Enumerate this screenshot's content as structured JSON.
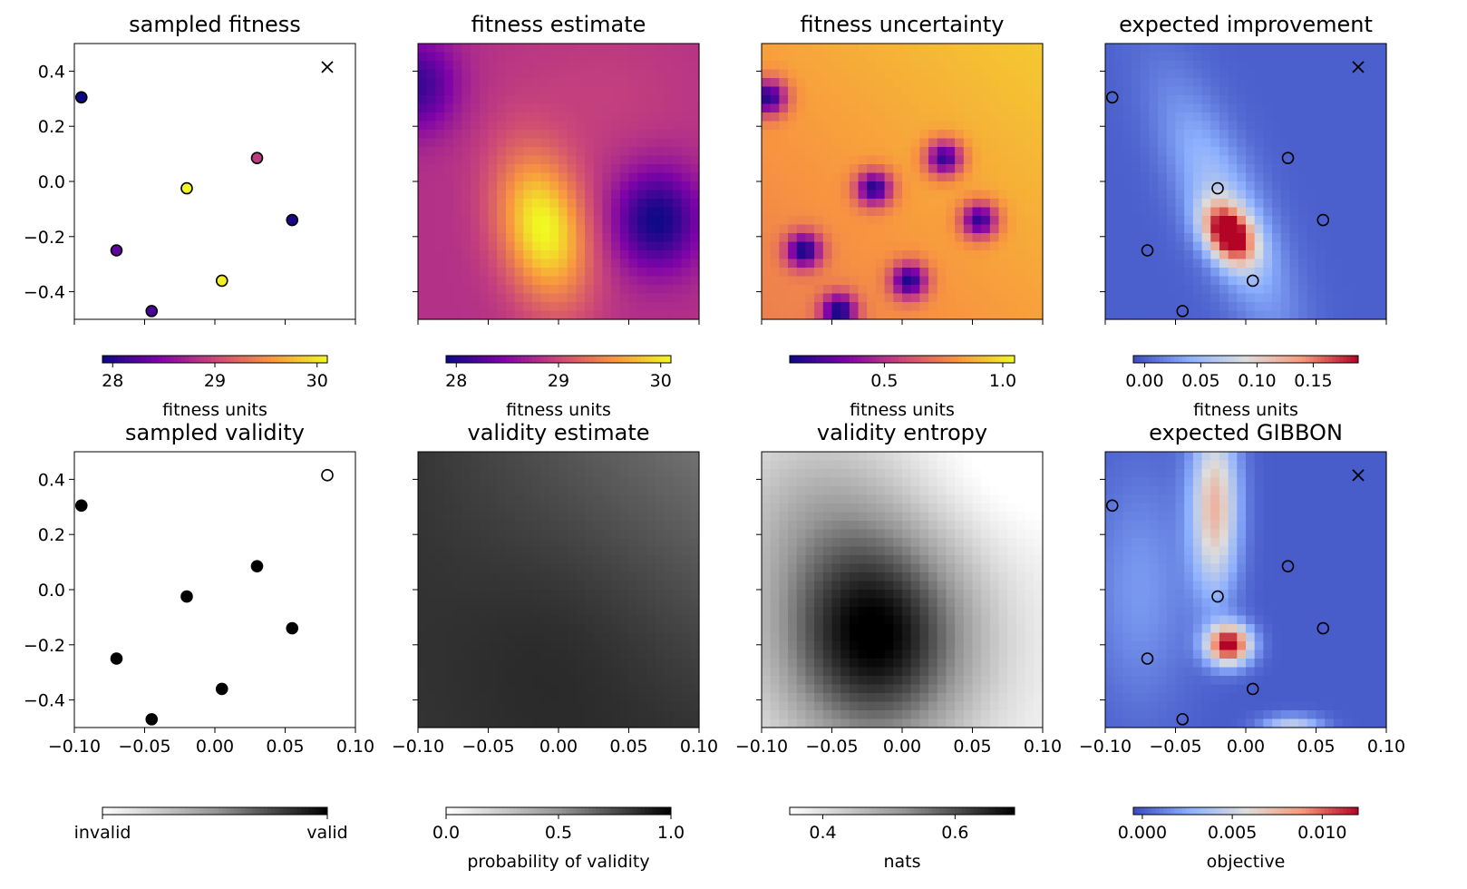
{
  "chart_data": [
    {
      "type": "scatter",
      "title": "sampled fitness",
      "xlim": [
        -0.1,
        0.1
      ],
      "ylim": [
        -0.5,
        0.5
      ],
      "xticks": [
        "−0.10",
        "−0.05",
        "0.00",
        "0.05",
        "0.10"
      ],
      "yticks": [
        "−0.4",
        "−0.2",
        "0.0",
        "0.2",
        "0.4"
      ],
      "show_xticklabels": false,
      "show_yticklabels": true,
      "colormap": "plasma",
      "points": [
        {
          "x": -0.095,
          "y": 0.305,
          "fitness": 27.9
        },
        {
          "x": -0.07,
          "y": -0.25,
          "fitness": 28.3
        },
        {
          "x": -0.045,
          "y": -0.47,
          "fitness": 28.2
        },
        {
          "x": -0.02,
          "y": -0.025,
          "fitness": 30.1
        },
        {
          "x": 0.005,
          "y": -0.36,
          "fitness": 30.05
        },
        {
          "x": 0.03,
          "y": 0.085,
          "fitness": 28.9
        },
        {
          "x": 0.055,
          "y": -0.14,
          "fitness": 27.95
        }
      ],
      "proposed": {
        "x": 0.08,
        "y": 0.415,
        "marker": "x"
      },
      "colorbar": {
        "colormap": "plasma",
        "range": [
          27.9,
          30.1
        ],
        "ticks": [
          "28",
          "29",
          "30"
        ],
        "tick_values": [
          28,
          29,
          30
        ],
        "label": "fitness units"
      }
    },
    {
      "type": "heatmap",
      "title": "fitness estimate",
      "colormap": "plasma",
      "xlim": [
        -0.1,
        0.1
      ],
      "ylim": [
        -0.5,
        0.5
      ],
      "show_xticklabels": false,
      "show_yticklabels": false,
      "colorbar": {
        "colormap": "plasma",
        "range": [
          27.9,
          30.1
        ],
        "ticks": [
          "28",
          "29",
          "30"
        ],
        "tick_values": [
          28,
          29,
          30
        ],
        "label": "fitness units"
      }
    },
    {
      "type": "heatmap",
      "title": "fitness uncertainty",
      "colormap": "plasma",
      "xlim": [
        -0.1,
        0.1
      ],
      "ylim": [
        -0.5,
        0.5
      ],
      "show_xticklabels": false,
      "show_yticklabels": false,
      "colorbar": {
        "colormap": "plasma",
        "range": [
          0.1,
          1.05
        ],
        "ticks": [
          "0.5",
          "1.0"
        ],
        "tick_values": [
          0.5,
          1.0
        ],
        "label": "fitness units"
      }
    },
    {
      "type": "heatmap",
      "title": "expected improvement",
      "colormap": "coolwarm",
      "xlim": [
        -0.1,
        0.1
      ],
      "ylim": [
        -0.5,
        0.5
      ],
      "show_xticklabels": false,
      "show_yticklabels": false,
      "colorbar": {
        "colormap": "coolwarm",
        "range": [
          -0.01,
          0.19
        ],
        "ticks": [
          "0.00",
          "0.05",
          "0.10",
          "0.15"
        ],
        "tick_values": [
          0,
          0.05,
          0.1,
          0.15
        ],
        "label": "fitness units"
      }
    },
    {
      "type": "scatter",
      "title": "sampled validity",
      "xlim": [
        -0.1,
        0.1
      ],
      "ylim": [
        -0.5,
        0.5
      ],
      "show_xticklabels": true,
      "show_yticklabels": true,
      "points": [
        {
          "x": -0.095,
          "y": 0.305,
          "valid": true
        },
        {
          "x": -0.07,
          "y": -0.25,
          "valid": true
        },
        {
          "x": -0.045,
          "y": -0.47,
          "valid": true
        },
        {
          "x": -0.02,
          "y": -0.025,
          "valid": true
        },
        {
          "x": 0.005,
          "y": -0.36,
          "valid": true
        },
        {
          "x": 0.03,
          "y": 0.085,
          "valid": true
        },
        {
          "x": 0.055,
          "y": -0.14,
          "valid": true
        },
        {
          "x": 0.08,
          "y": 0.415,
          "valid": false
        }
      ],
      "colorbar": {
        "colormap": "greys",
        "range": [
          0,
          1
        ],
        "ticks": [
          "invalid",
          "valid"
        ],
        "tick_values": [
          0,
          1
        ],
        "label": ""
      }
    },
    {
      "type": "heatmap",
      "title": "validity estimate",
      "colormap": "greys",
      "xlim": [
        -0.1,
        0.1
      ],
      "ylim": [
        -0.5,
        0.5
      ],
      "show_xticklabels": true,
      "show_yticklabels": false,
      "colorbar": {
        "colormap": "greys",
        "range": [
          0,
          1
        ],
        "ticks": [
          "0.0",
          "0.5",
          "1.0"
        ],
        "tick_values": [
          0,
          0.5,
          1
        ],
        "label": "probability of validity"
      }
    },
    {
      "type": "heatmap",
      "title": "validity entropy",
      "colormap": "greys",
      "xlim": [
        -0.1,
        0.1
      ],
      "ylim": [
        -0.5,
        0.5
      ],
      "show_xticklabels": true,
      "show_yticklabels": false,
      "colorbar": {
        "colormap": "greys",
        "range": [
          0.35,
          0.69
        ],
        "ticks": [
          "0.4",
          "0.6"
        ],
        "tick_values": [
          0.4,
          0.6
        ],
        "label": "nats"
      }
    },
    {
      "type": "heatmap",
      "title": "expected GIBBON",
      "colormap": "coolwarm",
      "xlim": [
        -0.1,
        0.1
      ],
      "ylim": [
        -0.5,
        0.5
      ],
      "show_xticklabels": true,
      "show_yticklabels": false,
      "colorbar": {
        "colormap": "coolwarm",
        "range": [
          -0.0005,
          0.012
        ],
        "ticks": [
          "0.000",
          "0.005",
          "0.010"
        ],
        "tick_values": [
          0,
          0.005,
          0.01
        ],
        "label": "objective"
      }
    }
  ]
}
